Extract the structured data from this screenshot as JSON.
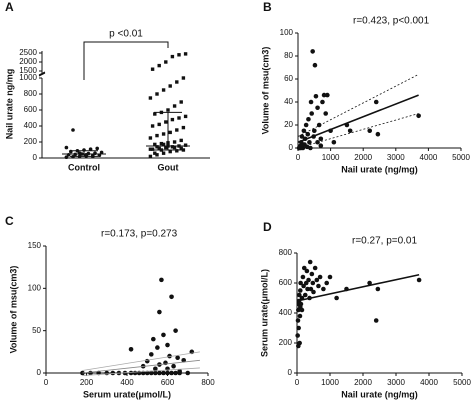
{
  "chart_data": [
    {
      "type": "dot_plot",
      "panel": "A",
      "annotation": "p <0.01",
      "ylabel": "Nail urate ng/mg",
      "categories": [
        "Control",
        "Gout"
      ],
      "values": [
        [
          10,
          15,
          20,
          25,
          30,
          35,
          40,
          45,
          50,
          55,
          60,
          70,
          80,
          90,
          100,
          110,
          120,
          130,
          350,
          60,
          40,
          20
        ],
        [
          20,
          40,
          60,
          80,
          90,
          100,
          110,
          120,
          130,
          140,
          150,
          160,
          170,
          180,
          190,
          200,
          220,
          250,
          280,
          300,
          320,
          350,
          380,
          400,
          420,
          450,
          480,
          500,
          520,
          550,
          570,
          600,
          650,
          700,
          750,
          800,
          850,
          900,
          950,
          1000,
          1600,
          1800,
          2000,
          2300,
          2400,
          2450,
          60,
          100,
          150,
          130,
          120,
          110,
          140,
          170
        ]
      ],
      "medians": [
        50,
        150
      ],
      "q1": [
        20,
        100
      ],
      "q3": [
        90,
        570
      ],
      "ylim": [
        0,
        1000
      ],
      "yticks": [
        0,
        200,
        400,
        600,
        800,
        1000
      ],
      "ylim_upper": [
        1500,
        2500
      ],
      "yticks_upper": [
        1500,
        2000,
        2500
      ],
      "color": "#111111"
    },
    {
      "type": "scatter",
      "panel": "B",
      "annotation": "r=0.423, p<0.001",
      "xlabel": "Nail urate (ng/mg)",
      "ylabel": "Volume of msu(cm3)",
      "x": [
        50,
        80,
        100,
        120,
        150,
        180,
        200,
        220,
        250,
        280,
        300,
        320,
        350,
        380,
        400,
        420,
        450,
        480,
        500,
        520,
        550,
        600,
        650,
        700,
        750,
        800,
        850,
        900,
        1000,
        1100,
        1500,
        1600,
        2200,
        2400,
        2450,
        3700,
        30,
        60,
        90,
        140,
        600,
        700
      ],
      "values": [
        0,
        2,
        5,
        10,
        0,
        15,
        3,
        8,
        20,
        1,
        12,
        25,
        5,
        0,
        40,
        30,
        84,
        10,
        15,
        72,
        45,
        35,
        20,
        8,
        40,
        46,
        30,
        46,
        15,
        5,
        20,
        15,
        15,
        40,
        12,
        28,
        0,
        1,
        0,
        2,
        5,
        2
      ],
      "fit": {
        "x": [
          0,
          3700
        ],
        "y": [
          5,
          46
        ]
      },
      "ci_upper": {
        "x": [
          0,
          3700
        ],
        "y": [
          10,
          64
        ]
      },
      "ci_lower": {
        "x": [
          0,
          3700
        ],
        "y": [
          0,
          30
        ]
      },
      "xlim": [
        0,
        5000
      ],
      "xticks": [
        0,
        1000,
        2000,
        3000,
        4000,
        5000
      ],
      "ylim": [
        0,
        100
      ],
      "yticks": [
        0,
        20,
        40,
        60,
        80,
        100
      ],
      "color": "#111111"
    },
    {
      "type": "scatter",
      "panel": "C",
      "annotation": "r=0.173, p=0.273",
      "xlabel": "Serum urate(μmol/L)",
      "ylabel": "Volume of msu(cm3)",
      "x": [
        180,
        220,
        260,
        300,
        330,
        360,
        390,
        420,
        440,
        460,
        480,
        500,
        520,
        540,
        560,
        580,
        600,
        620,
        640,
        660,
        700,
        420,
        480,
        500,
        520,
        530,
        540,
        550,
        560,
        570,
        580,
        590,
        600,
        610,
        620,
        630,
        640,
        650,
        660,
        680,
        720,
        560,
        600
      ],
      "values": [
        0,
        0,
        0,
        0,
        0,
        0,
        0,
        0,
        0,
        0,
        0,
        0,
        0,
        0,
        0,
        0,
        0,
        0,
        0,
        0,
        0,
        28,
        8,
        14,
        22,
        40,
        5,
        30,
        72,
        110,
        45,
        12,
        33,
        20,
        90,
        8,
        50,
        18,
        2,
        15,
        25,
        10,
        5
      ],
      "fit": {
        "x": [
          180,
          760
        ],
        "y": [
          0,
          15
        ]
      },
      "ci_upper": {
        "x": [
          180,
          760
        ],
        "y": [
          3,
          25
        ]
      },
      "ci_lower": {
        "x": [
          180,
          760
        ],
        "y": [
          -3,
          6
        ]
      },
      "xlim": [
        0,
        800
      ],
      "xticks": [
        0,
        200,
        400,
        600,
        800
      ],
      "ylim": [
        0,
        150
      ],
      "yticks": [
        0,
        50,
        100,
        150
      ],
      "color": "#111111"
    },
    {
      "type": "scatter",
      "panel": "D",
      "annotation": "r=0.27, p=0.01",
      "xlabel": "Nail urate (ng/mg)",
      "ylabel": "Serum urate(μmol/L)",
      "x": [
        20,
        30,
        40,
        50,
        60,
        70,
        80,
        90,
        100,
        110,
        120,
        150,
        180,
        200,
        220,
        250,
        280,
        300,
        320,
        350,
        380,
        400,
        420,
        450,
        480,
        500,
        550,
        600,
        650,
        700,
        800,
        900,
        1000,
        1200,
        1500,
        2200,
        2400,
        2450,
        3700,
        40,
        60,
        100,
        150
      ],
      "values": [
        250,
        350,
        420,
        300,
        480,
        520,
        200,
        380,
        550,
        600,
        460,
        500,
        640,
        580,
        700,
        520,
        600,
        680,
        560,
        620,
        500,
        740,
        560,
        660,
        600,
        540,
        700,
        620,
        580,
        640,
        560,
        600,
        640,
        500,
        560,
        600,
        350,
        560,
        620,
        180,
        460,
        440,
        420
      ],
      "fit": {
        "x": [
          0,
          3700
        ],
        "y": [
          480,
          655
        ]
      },
      "xlim": [
        0,
        5000
      ],
      "xticks": [
        0,
        1000,
        2000,
        3000,
        4000,
        5000
      ],
      "ylim": [
        0,
        800
      ],
      "yticks": [
        0,
        200,
        400,
        600,
        800
      ],
      "color": "#111111"
    }
  ]
}
